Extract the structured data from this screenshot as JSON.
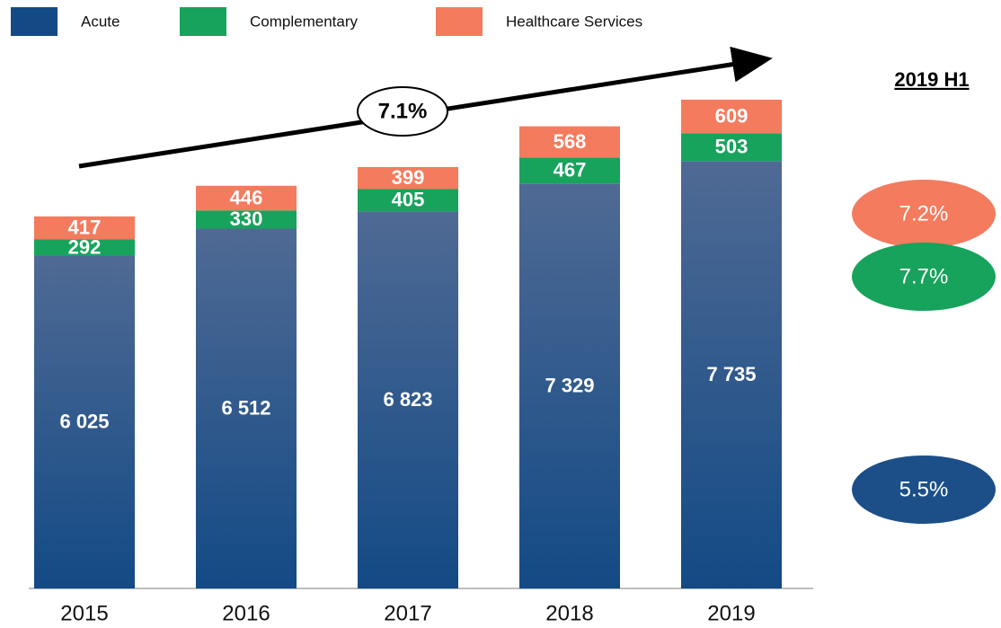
{
  "chart_data": {
    "type": "stacked_bar",
    "categories": [
      "2015",
      "2016",
      "2017",
      "2018",
      "2019"
    ],
    "series": [
      {
        "name": "Acute",
        "color": "#134a85",
        "values": [
          6025,
          6512,
          6823,
          7329,
          7735
        ],
        "value_labels": [
          "6 025",
          "6 512",
          "6 823",
          "7 329",
          "7 735"
        ]
      },
      {
        "name": "Complementary",
        "color": "#17a35c",
        "values": [
          292,
          330,
          405,
          467,
          503
        ]
      },
      {
        "name": "Healthcare Services",
        "color": "#f47b5e",
        "values": [
          417,
          446,
          399,
          568,
          609
        ]
      }
    ],
    "ylim": [
      0,
      10000
    ],
    "annotations": {
      "cagr": "7.1%",
      "side_title": "2019 H1",
      "side_growth": [
        {
          "text": "7.2%",
          "color": "#f47b5e"
        },
        {
          "text": "7.7%",
          "color": "#17a35c"
        },
        {
          "text": "5.5%",
          "color": "#1c4f88"
        }
      ]
    }
  }
}
